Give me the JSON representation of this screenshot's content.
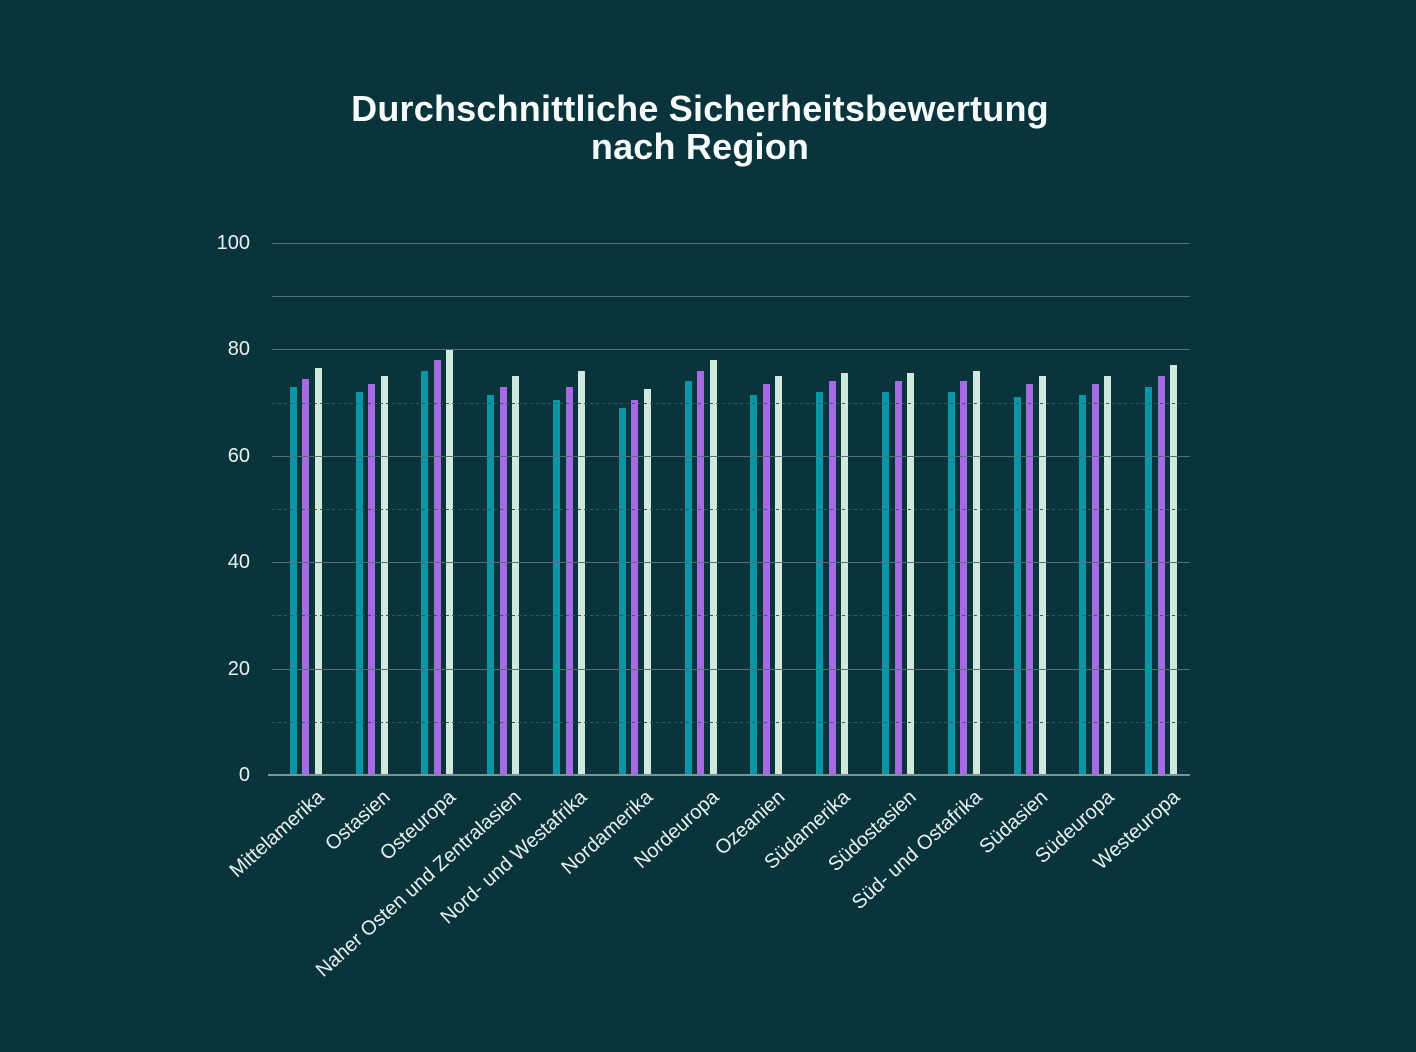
{
  "chart": {
    "title_line1": "Durchschnittliche Sicherheitsbewertung",
    "title_line2": "nach Region",
    "colors": {
      "background": "#0a343b",
      "title_text": "#f6fbfa",
      "axis_text": "#e8f1f0",
      "gridline_major": "#527076",
      "gridline_minor": "#37575d",
      "axis_line": "#7c9499"
    }
  },
  "chart_data": {
    "type": "bar",
    "title": "Durchschnittliche Sicherheitsbewertung nach Region",
    "xlabel": "",
    "ylabel": "",
    "ylim": [
      0,
      100
    ],
    "yticks": [
      0,
      20,
      40,
      60,
      80,
      100
    ],
    "grid": "horizontal lines every 10, minor lines dotted",
    "legend": "none",
    "bar_orientation": "vertical",
    "categories": [
      "Mittelamerika",
      "Ostasien",
      "Osteuropa",
      "Naher Osten und Zentralasien",
      "Nord- und Westafrika",
      "Nordamerika",
      "Nordeuropa",
      "Ozeanien",
      "Südamerika",
      "Südostasien",
      "Süd- und Ostafrika",
      "Südasien",
      "Südeuropa",
      "Westeuropa"
    ],
    "series": [
      {
        "name": "teal",
        "color": "#0b96a5",
        "values": [
          73,
          72,
          76,
          71.5,
          70.5,
          69,
          74,
          71.5,
          72,
          72,
          72,
          71,
          71.5,
          73
        ]
      },
      {
        "name": "purple",
        "color": "#a56ae4",
        "values": [
          74.5,
          73.5,
          78,
          73,
          73,
          70.5,
          76,
          73.5,
          74,
          74,
          74,
          73.5,
          73.5,
          75
        ]
      },
      {
        "name": "mint",
        "color": "#d0e9dc",
        "values": [
          76.5,
          75,
          80,
          75,
          76,
          72.5,
          78,
          75,
          75.5,
          75.5,
          76,
          75,
          75,
          77
        ]
      }
    ]
  }
}
